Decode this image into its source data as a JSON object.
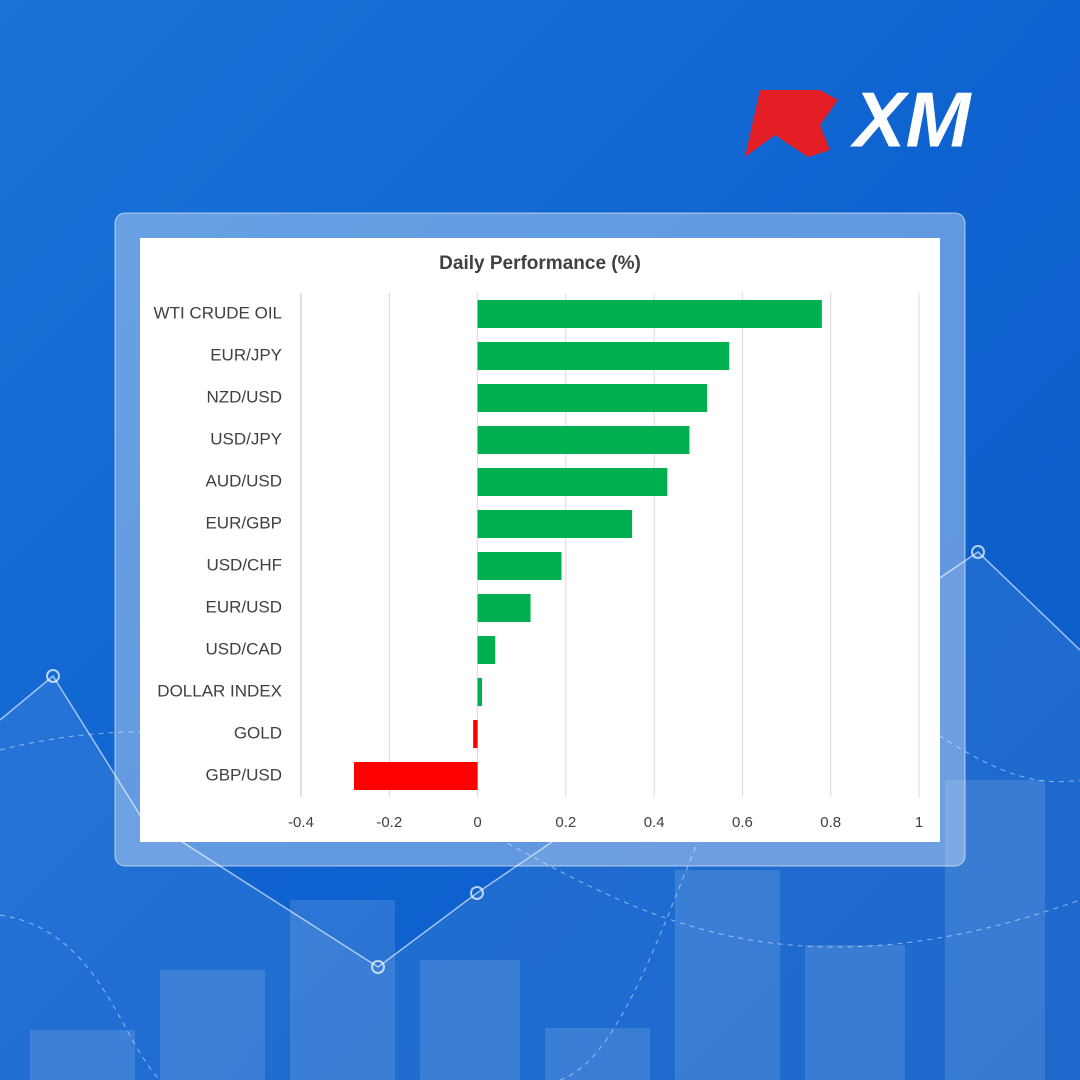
{
  "logo": "XM",
  "chart_data": {
    "type": "bar",
    "orientation": "horizontal",
    "title": "Daily Performance (%)",
    "categories": [
      "WTI CRUDE OIL",
      "EUR/JPY",
      "NZD/USD",
      "USD/JPY",
      "AUD/USD",
      "EUR/GBP",
      "USD/CHF",
      "EUR/USD",
      "USD/CAD",
      "DOLLAR INDEX",
      "GOLD",
      "GBP/USD"
    ],
    "values": [
      0.78,
      0.57,
      0.52,
      0.48,
      0.43,
      0.35,
      0.19,
      0.12,
      0.04,
      0.01,
      -0.01,
      -0.28
    ],
    "positive_color": "#00b050",
    "negative_color": "#ff0000",
    "xlim": [
      -0.4,
      1
    ],
    "xticks": [
      -0.4,
      -0.2,
      0,
      0.2,
      0.4,
      0.6,
      0.8,
      1
    ],
    "grid": true
  }
}
